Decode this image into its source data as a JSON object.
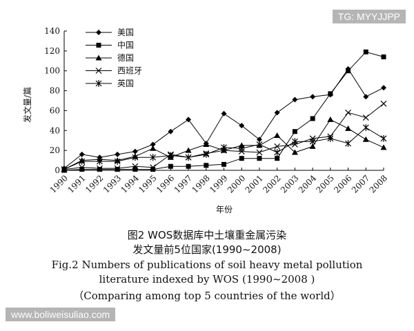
{
  "watermarks": {
    "top_right": "TG: MYYJJPP",
    "bottom_left": "www.boliweisuliao.com"
  },
  "caption": {
    "cn_line1": "图2 WOS数据库中土壤重金属污染",
    "cn_line2": "发文量前5位国家(1990~2008)",
    "en_line1": "Fig.2  Numbers of publications of soil heavy metal pollution",
    "en_line2": "literature indexed by WOS (1990~2008 )",
    "en_line3": "（Comparing among top 5 countries of the world）"
  },
  "chart_data": {
    "type": "line",
    "xlabel": "年份",
    "ylabel": "发文量/篇",
    "x": [
      "1990",
      "1991",
      "1992",
      "1993",
      "1994",
      "1995",
      "1996",
      "1997",
      "1998",
      "1999",
      "2000",
      "2001",
      "2002",
      "2003",
      "2004",
      "2005",
      "2006",
      "2007",
      "2008"
    ],
    "ylim": [
      0,
      140
    ],
    "yticks": [
      0,
      20,
      40,
      60,
      80,
      100,
      120,
      140
    ],
    "grid": false,
    "legend_position": "top-left",
    "series": [
      {
        "name": "美国",
        "marker": "diamond",
        "values": [
          2,
          16,
          13,
          16,
          19,
          26,
          39,
          51,
          27,
          57,
          45,
          31,
          58,
          71,
          74,
          76,
          102,
          74,
          83
        ]
      },
      {
        "name": "中国",
        "marker": "square",
        "values": [
          0,
          1,
          1,
          1,
          1,
          1,
          4,
          4,
          5,
          6,
          12,
          12,
          12,
          39,
          52,
          77,
          100,
          119,
          114
        ]
      },
      {
        "name": "德国",
        "marker": "triangle",
        "values": [
          1,
          10,
          11,
          10,
          14,
          22,
          13,
          20,
          26,
          20,
          25,
          25,
          35,
          18,
          24,
          51,
          42,
          31,
          23
        ]
      },
      {
        "name": "西班牙",
        "marker": "x",
        "values": [
          1,
          3,
          2,
          2,
          4,
          3,
          16,
          13,
          17,
          20,
          19,
          18,
          24,
          26,
          32,
          34,
          58,
          53,
          67
        ]
      },
      {
        "name": "英国",
        "marker": "star",
        "values": [
          1,
          9,
          9,
          9,
          13,
          13,
          15,
          13,
          16,
          23,
          22,
          26,
          18,
          29,
          29,
          32,
          27,
          43,
          32
        ]
      }
    ]
  }
}
